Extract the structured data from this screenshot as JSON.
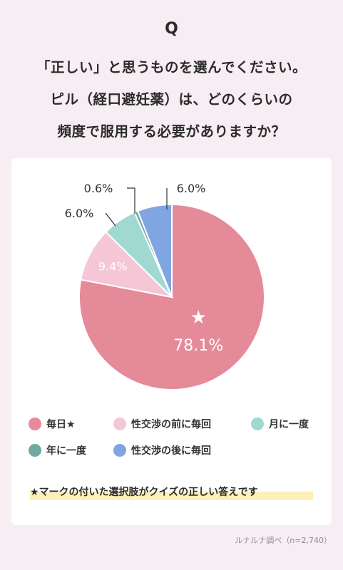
{
  "header": {
    "q_label": "Q",
    "question_lines": [
      "「正しい」と思うものを選んでください。",
      "ピル（経口避妊薬）は、どのくらいの",
      "頻度で服用する必要がありますか？"
    ]
  },
  "chart_data": {
    "type": "pie",
    "title": "",
    "start_angle_deg": 0,
    "direction": "clockwise",
    "slices": [
      {
        "name": "毎日",
        "label": "78.1%",
        "value": 78.1,
        "color": "#e48a99",
        "star": true,
        "label_inside": true,
        "label_color": "#ffffff"
      },
      {
        "name": "性交渉の前に毎回",
        "label": "9.4%",
        "value": 9.4,
        "color": "#f5c6d6",
        "star": false,
        "label_inside": true,
        "label_color": "#ffffff"
      },
      {
        "name": "月に一度",
        "label": "6.0%",
        "value": 6.0,
        "color": "#9fd9d2",
        "star": false,
        "label_inside": false,
        "label_color": "#333333"
      },
      {
        "name": "年に一度",
        "label": "0.6%",
        "value": 0.6,
        "color": "#6fa9a0",
        "star": false,
        "label_inside": false,
        "label_color": "#333333"
      },
      {
        "name": "性交渉の後に毎回",
        "label": "6.0%",
        "value": 6.0,
        "color": "#7fa6e0",
        "star": false,
        "label_inside": false,
        "label_color": "#333333"
      }
    ],
    "star_symbol": "★"
  },
  "legend": {
    "items": [
      {
        "label": "毎日★",
        "color": "#e48a99"
      },
      {
        "label": "性交渉の前に毎回",
        "color": "#f5c6d6"
      },
      {
        "label": "月に一度",
        "color": "#9fd9d2"
      },
      {
        "label": "年に一度",
        "color": "#6fa9a0"
      },
      {
        "label": "性交渉の後に毎回",
        "color": "#7fa6e0"
      }
    ]
  },
  "footnote": "★マークの付いた選択肢がクイズの正しい答えです",
  "source": "ルナルナ調べ（n=2,740）"
}
